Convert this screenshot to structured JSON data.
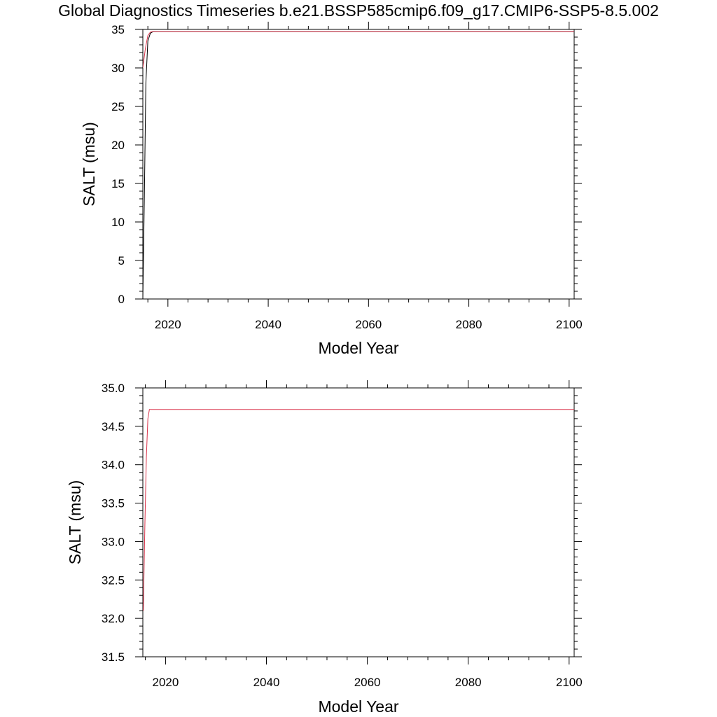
{
  "title": "Global Diagnostics Timeseries b.e21.BSSP585cmip6.f09_g17.CMIP6-SSP5-8.5.002",
  "chart_data": [
    {
      "type": "line",
      "xlabel": "Model Year",
      "ylabel": "SALT (msu)",
      "xlim": [
        2015,
        2101
      ],
      "ylim": [
        0,
        35
      ],
      "xticks": [
        2020,
        2040,
        2060,
        2080,
        2100
      ],
      "xtick_labels": [
        "2020",
        "2040",
        "2060",
        "2080",
        "2100"
      ],
      "yticks": [
        0,
        5,
        10,
        15,
        20,
        25,
        30,
        35
      ],
      "ytick_labels": [
        "0",
        "5",
        "10",
        "15",
        "20",
        "25",
        "30",
        "35"
      ],
      "grid": false,
      "series": [
        {
          "color": "#000000",
          "x": [
            2015.0,
            2015.3,
            2015.6,
            2016.0,
            2016.5,
            2017.0,
            2018.0,
            2030.0,
            2060.0,
            2101.0
          ],
          "y": [
            0.0,
            13.0,
            28.0,
            33.5,
            34.5,
            34.7,
            34.72,
            34.72,
            34.72,
            34.72
          ]
        },
        {
          "color": "#d9334a",
          "x": [
            2015.0,
            2015.5,
            2016.0,
            2016.5,
            2017.0,
            2030.0,
            2060.0,
            2101.0
          ],
          "y": [
            30.0,
            32.5,
            34.2,
            34.65,
            34.72,
            34.72,
            34.72,
            34.72
          ]
        }
      ]
    },
    {
      "type": "line",
      "xlabel": "Model Year",
      "ylabel": "SALT (msu)",
      "xlim": [
        2015.5,
        2101
      ],
      "ylim": [
        31.5,
        35.0
      ],
      "xticks": [
        2020,
        2040,
        2060,
        2080,
        2100
      ],
      "xtick_labels": [
        "2020",
        "2040",
        "2060",
        "2080",
        "2100"
      ],
      "yticks": [
        31.5,
        32.0,
        32.5,
        33.0,
        33.5,
        34.0,
        34.5,
        35.0
      ],
      "ytick_labels": [
        "31.5",
        "32.0",
        "32.5",
        "33.0",
        "33.5",
        "34.0",
        "34.5",
        "35.0"
      ],
      "grid": false,
      "series": [
        {
          "color": "#d9334a",
          "x": [
            2015.6,
            2015.9,
            2016.2,
            2016.5,
            2016.8,
            2030.0,
            2060.0,
            2101.0
          ],
          "y": [
            32.1,
            33.2,
            34.1,
            34.6,
            34.72,
            34.72,
            34.72,
            34.72
          ]
        }
      ]
    }
  ]
}
